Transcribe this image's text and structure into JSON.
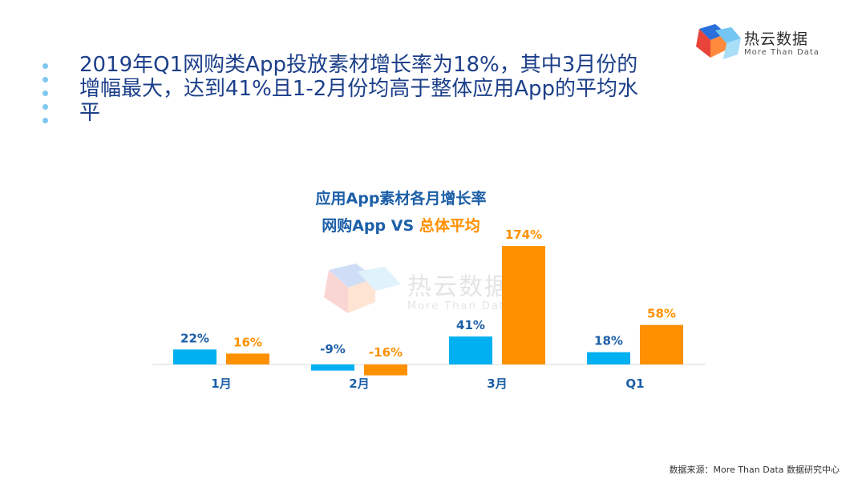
{
  "heading": {
    "line1": "2019年Q1网购类App投放素材增长率为18%，其中3月份的",
    "line2": "增幅最大，达到41%且1-2月份均高于整体应用App的平均水",
    "line3": "平"
  },
  "logo": {
    "name": "热云数据",
    "tagline": "More Than Data"
  },
  "watermark": {
    "name": "热云数据",
    "tagline": "More Than Data"
  },
  "source": "数据来源：More Than Data 数据研究中心",
  "colors": {
    "series1": "#00b0f0",
    "series2": "#ff9000",
    "title": "#1c5fa8",
    "heading": "#1c3f8a"
  },
  "chart_data": {
    "type": "bar",
    "title": "应用App素材各月增长率",
    "subtitle_part1": "网购App VS ",
    "subtitle_part2": "总体平均",
    "categories": [
      "1月",
      "2月",
      "3月",
      "Q1"
    ],
    "series": [
      {
        "name": "网购App",
        "values": [
          22,
          -9,
          41,
          18
        ],
        "labels": [
          "22%",
          "-9%",
          "41%",
          "18%"
        ]
      },
      {
        "name": "总体平均",
        "values": [
          16,
          -16,
          174,
          58
        ],
        "labels": [
          "16%",
          "-16%",
          "174%",
          "58%"
        ]
      }
    ],
    "xlabel": "",
    "ylabel": "",
    "unit": "%"
  }
}
